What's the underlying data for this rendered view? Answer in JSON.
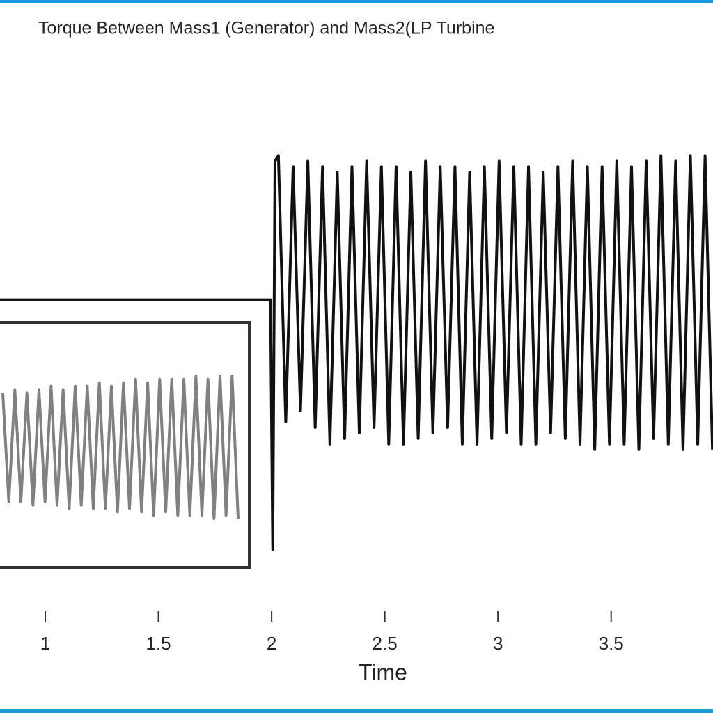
{
  "chart_data": [
    {
      "type": "line",
      "title": "Torque Between Mass1 (Generator) and Mass2(LP Turbine",
      "x_label": "Time",
      "xlim": [
        0.8,
        3.95
      ],
      "xticks": [
        1,
        {
          "value": 1.5,
          "label": "1.5"
        },
        2,
        {
          "value": 2.5,
          "label": "2.5"
        },
        3,
        {
          "value": 3.5,
          "label": "3.5"
        }
      ],
      "ylim": [
        -2.6,
        2.2
      ],
      "x": [
        0.8,
        1.995,
        2.005,
        2.015,
        2.03,
        2.0625,
        2.095,
        2.1275,
        2.16,
        2.1925,
        2.225,
        2.2575,
        2.29,
        2.3225,
        2.355,
        2.3875,
        2.42,
        2.4525,
        2.485,
        2.5175,
        2.55,
        2.5825,
        2.615,
        2.6475,
        2.68,
        2.7125,
        2.745,
        2.7775,
        2.81,
        2.8425,
        2.875,
        2.9075,
        2.94,
        2.9725,
        3.005,
        3.0375,
        3.07,
        3.1025,
        3.135,
        3.1675,
        3.2,
        3.2325,
        3.265,
        3.2975,
        3.33,
        3.3625,
        3.395,
        3.4275,
        3.46,
        3.4925,
        3.525,
        3.5575,
        3.59,
        3.6225,
        3.655,
        3.6875,
        3.72,
        3.7525,
        3.785,
        3.8175,
        3.85,
        3.8825,
        3.915,
        3.9475
      ],
      "series": [
        {
          "color": "#111111",
          "values": [
            0,
            0,
            -2.25,
            1.25,
            1.3,
            -1.1,
            1.2,
            -1.0,
            1.25,
            -1.15,
            1.2,
            -1.3,
            1.15,
            -1.25,
            1.2,
            -1.2,
            1.25,
            -1.15,
            1.2,
            -1.3,
            1.2,
            -1.3,
            1.15,
            -1.25,
            1.25,
            -1.2,
            1.2,
            -1.15,
            1.2,
            -1.3,
            1.15,
            -1.3,
            1.2,
            -1.25,
            1.25,
            -1.2,
            1.2,
            -1.3,
            1.2,
            -1.3,
            1.15,
            -1.2,
            1.2,
            -1.25,
            1.25,
            -1.3,
            1.2,
            -1.35,
            1.2,
            -1.3,
            1.25,
            -1.3,
            1.2,
            -1.35,
            1.25,
            -1.25,
            1.3,
            -1.3,
            1.25,
            -1.35,
            1.3,
            -1.3,
            1.3,
            -1.35
          ]
        }
      ]
    },
    {
      "type": "line",
      "series": [
        {
          "color": "#808080",
          "values": [
            0.8,
            -0.8,
            0.85,
            -0.8,
            0.8,
            -0.85,
            0.85,
            -0.8,
            0.9,
            -0.85,
            0.85,
            -0.9,
            0.9,
            -0.85,
            0.9,
            -0.9,
            0.95,
            -0.9,
            0.9,
            -0.95,
            0.95,
            -0.9,
            1.0,
            -0.95,
            0.95,
            -1.0,
            1.0,
            -0.95,
            1.0,
            -1.0,
            1.0,
            -1.0,
            1.05,
            -1.0,
            1.0,
            -1.05,
            1.05,
            -1.0,
            1.05,
            -1.05
          ]
        }
      ]
    }
  ]
}
